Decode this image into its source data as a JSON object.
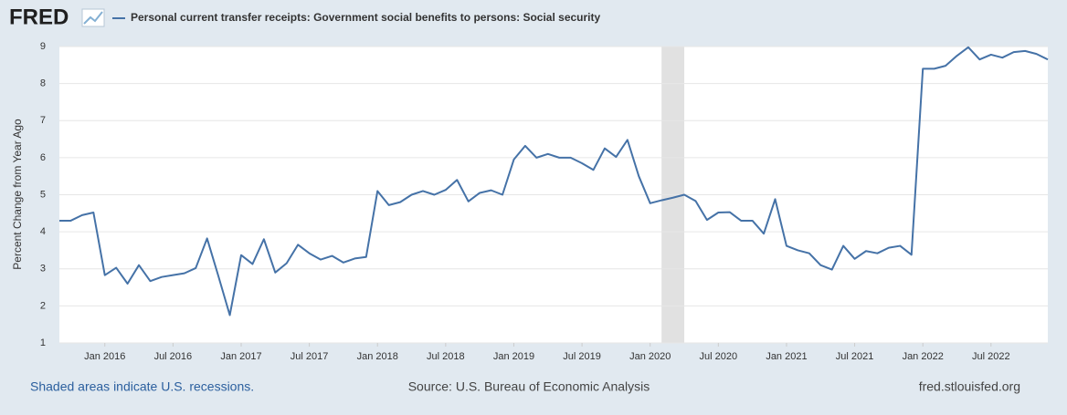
{
  "chart_data": {
    "type": "line",
    "logo": "FRED",
    "y_label": "Percent Change from Year Ago",
    "recession_note": "Shaded areas indicate U.S. recessions.",
    "source": "Source: U.S. Bureau of Economic Analysis",
    "site": "fred.stlouisfed.org",
    "recessions": [
      [
        "2020-02",
        "2020-04"
      ]
    ],
    "recession_color": "#e1e1e1",
    "grid": true,
    "xlim": [
      "2015-09",
      "2022-12"
    ],
    "xticks": [
      {
        "value": "2016-01",
        "label": "Jan 2016"
      },
      {
        "value": "2016-07",
        "label": "Jul 2016"
      },
      {
        "value": "2017-01",
        "label": "Jan 2017"
      },
      {
        "value": "2017-07",
        "label": "Jul 2017"
      },
      {
        "value": "2018-01",
        "label": "Jan 2018"
      },
      {
        "value": "2018-07",
        "label": "Jul 2018"
      },
      {
        "value": "2019-01",
        "label": "Jan 2019"
      },
      {
        "value": "2019-07",
        "label": "Jul 2019"
      },
      {
        "value": "2020-01",
        "label": "Jan 2020"
      },
      {
        "value": "2020-07",
        "label": "Jul 2020"
      },
      {
        "value": "2021-01",
        "label": "Jan 2021"
      },
      {
        "value": "2021-07",
        "label": "Jul 2021"
      },
      {
        "value": "2022-01",
        "label": "Jan 2022"
      },
      {
        "value": "2022-07",
        "label": "Jul 2022"
      }
    ],
    "ylim": [
      1,
      9
    ],
    "yticks": [
      1,
      2,
      3,
      4,
      5,
      6,
      7,
      8,
      9
    ],
    "x": [
      "2015-09",
      "2015-10",
      "2015-11",
      "2015-12",
      "2016-01",
      "2016-02",
      "2016-03",
      "2016-04",
      "2016-05",
      "2016-06",
      "2016-07",
      "2016-08",
      "2016-09",
      "2016-10",
      "2016-11",
      "2016-12",
      "2017-01",
      "2017-02",
      "2017-03",
      "2017-04",
      "2017-05",
      "2017-06",
      "2017-07",
      "2017-08",
      "2017-09",
      "2017-10",
      "2017-11",
      "2017-12",
      "2018-01",
      "2018-02",
      "2018-03",
      "2018-04",
      "2018-05",
      "2018-06",
      "2018-07",
      "2018-08",
      "2018-09",
      "2018-10",
      "2018-11",
      "2018-12",
      "2019-01",
      "2019-02",
      "2019-03",
      "2019-04",
      "2019-05",
      "2019-06",
      "2019-07",
      "2019-08",
      "2019-09",
      "2019-10",
      "2019-11",
      "2019-12",
      "2020-01",
      "2020-02",
      "2020-03",
      "2020-04",
      "2020-05",
      "2020-06",
      "2020-07",
      "2020-08",
      "2020-09",
      "2020-10",
      "2020-11",
      "2020-12",
      "2021-01",
      "2021-02",
      "2021-03",
      "2021-04",
      "2021-05",
      "2021-06",
      "2021-07",
      "2021-08",
      "2021-09",
      "2021-10",
      "2021-11",
      "2021-12",
      "2022-01",
      "2022-02",
      "2022-03",
      "2022-04",
      "2022-05",
      "2022-06",
      "2022-07",
      "2022-08",
      "2022-09",
      "2022-10",
      "2022-11",
      "2022-12"
    ],
    "series": [
      {
        "name": "Personal current transfer receipts: Government social benefits to persons: Social security",
        "color": "#4572a7",
        "values": [
          4.3,
          4.3,
          4.45,
          4.52,
          2.83,
          3.03,
          2.6,
          3.1,
          2.67,
          2.78,
          2.83,
          2.88,
          3.02,
          3.82,
          2.8,
          1.75,
          3.37,
          3.13,
          3.8,
          2.9,
          3.15,
          3.65,
          3.42,
          3.25,
          3.35,
          3.17,
          3.28,
          3.32,
          5.1,
          4.72,
          4.8,
          5.0,
          5.1,
          5.0,
          5.13,
          5.4,
          4.82,
          5.05,
          5.12,
          5.0,
          5.95,
          6.32,
          6.0,
          6.1,
          6.0,
          6.0,
          5.85,
          5.67,
          6.25,
          6.02,
          6.48,
          5.5,
          4.77,
          4.85,
          4.92,
          5.0,
          4.83,
          4.32,
          4.52,
          4.53,
          4.3,
          4.3,
          3.95,
          4.88,
          3.62,
          3.5,
          3.42,
          3.1,
          2.98,
          3.62,
          3.27,
          3.48,
          3.42,
          3.57,
          3.62,
          3.38,
          8.4,
          8.4,
          8.48,
          8.75,
          8.98,
          8.65,
          8.78,
          8.7,
          8.85,
          8.88,
          8.8,
          8.65
        ]
      }
    ]
  }
}
